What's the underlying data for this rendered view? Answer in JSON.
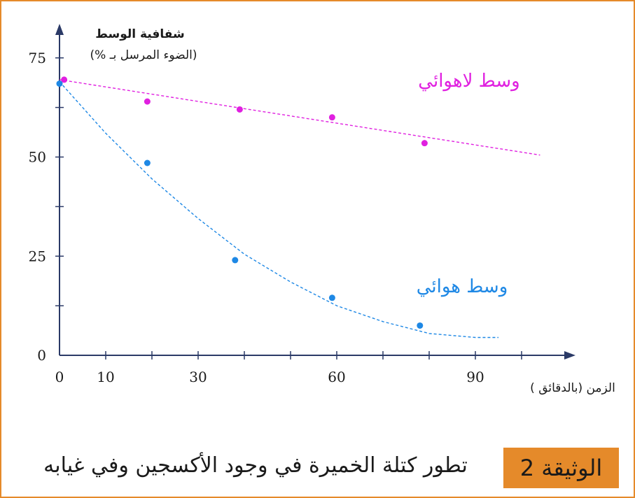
{
  "document": {
    "label": "الوثيقة 2",
    "caption": "تطور كتلة الخميرة في وجود الأكسجين وفي غيابه"
  },
  "colors": {
    "anaerobic": "#e020e0",
    "aerobic": "#1e88e5",
    "axis": "#2b3a67",
    "frame": "#e58a2a"
  },
  "chart_data": {
    "type": "scatter",
    "ylabel_line1": "شفافية الوسط",
    "ylabel_line2": "(الضوء المرسل بـ %)",
    "xlabel": "الزمن  (بالدقائق )",
    "xticks": [
      0,
      10,
      30,
      60,
      90
    ],
    "yticks": [
      0,
      25,
      50,
      75
    ],
    "xlim": [
      0,
      110
    ],
    "ylim": [
      0,
      80
    ],
    "series": [
      {
        "name": "وسط لاهوائي",
        "color": "#e020e0",
        "x": [
          1,
          19,
          39,
          59,
          79
        ],
        "y": [
          69.5,
          64,
          62,
          60,
          53.5
        ],
        "trend": [
          [
            0,
            69.5
          ],
          [
            104,
            50.5
          ]
        ]
      },
      {
        "name": "وسط هوائي",
        "color": "#1e88e5",
        "x": [
          0,
          19,
          38,
          59,
          78
        ],
        "y": [
          68.5,
          48.5,
          24,
          14.5,
          7.5
        ],
        "trend": [
          [
            0,
            69
          ],
          [
            10,
            56
          ],
          [
            20,
            44.5
          ],
          [
            30,
            34.5
          ],
          [
            40,
            25.5
          ],
          [
            50,
            18.5
          ],
          [
            60,
            12.5
          ],
          [
            70,
            8.5
          ],
          [
            80,
            5.5
          ],
          [
            90,
            4.5
          ],
          [
            95,
            4.5
          ]
        ]
      }
    ]
  }
}
